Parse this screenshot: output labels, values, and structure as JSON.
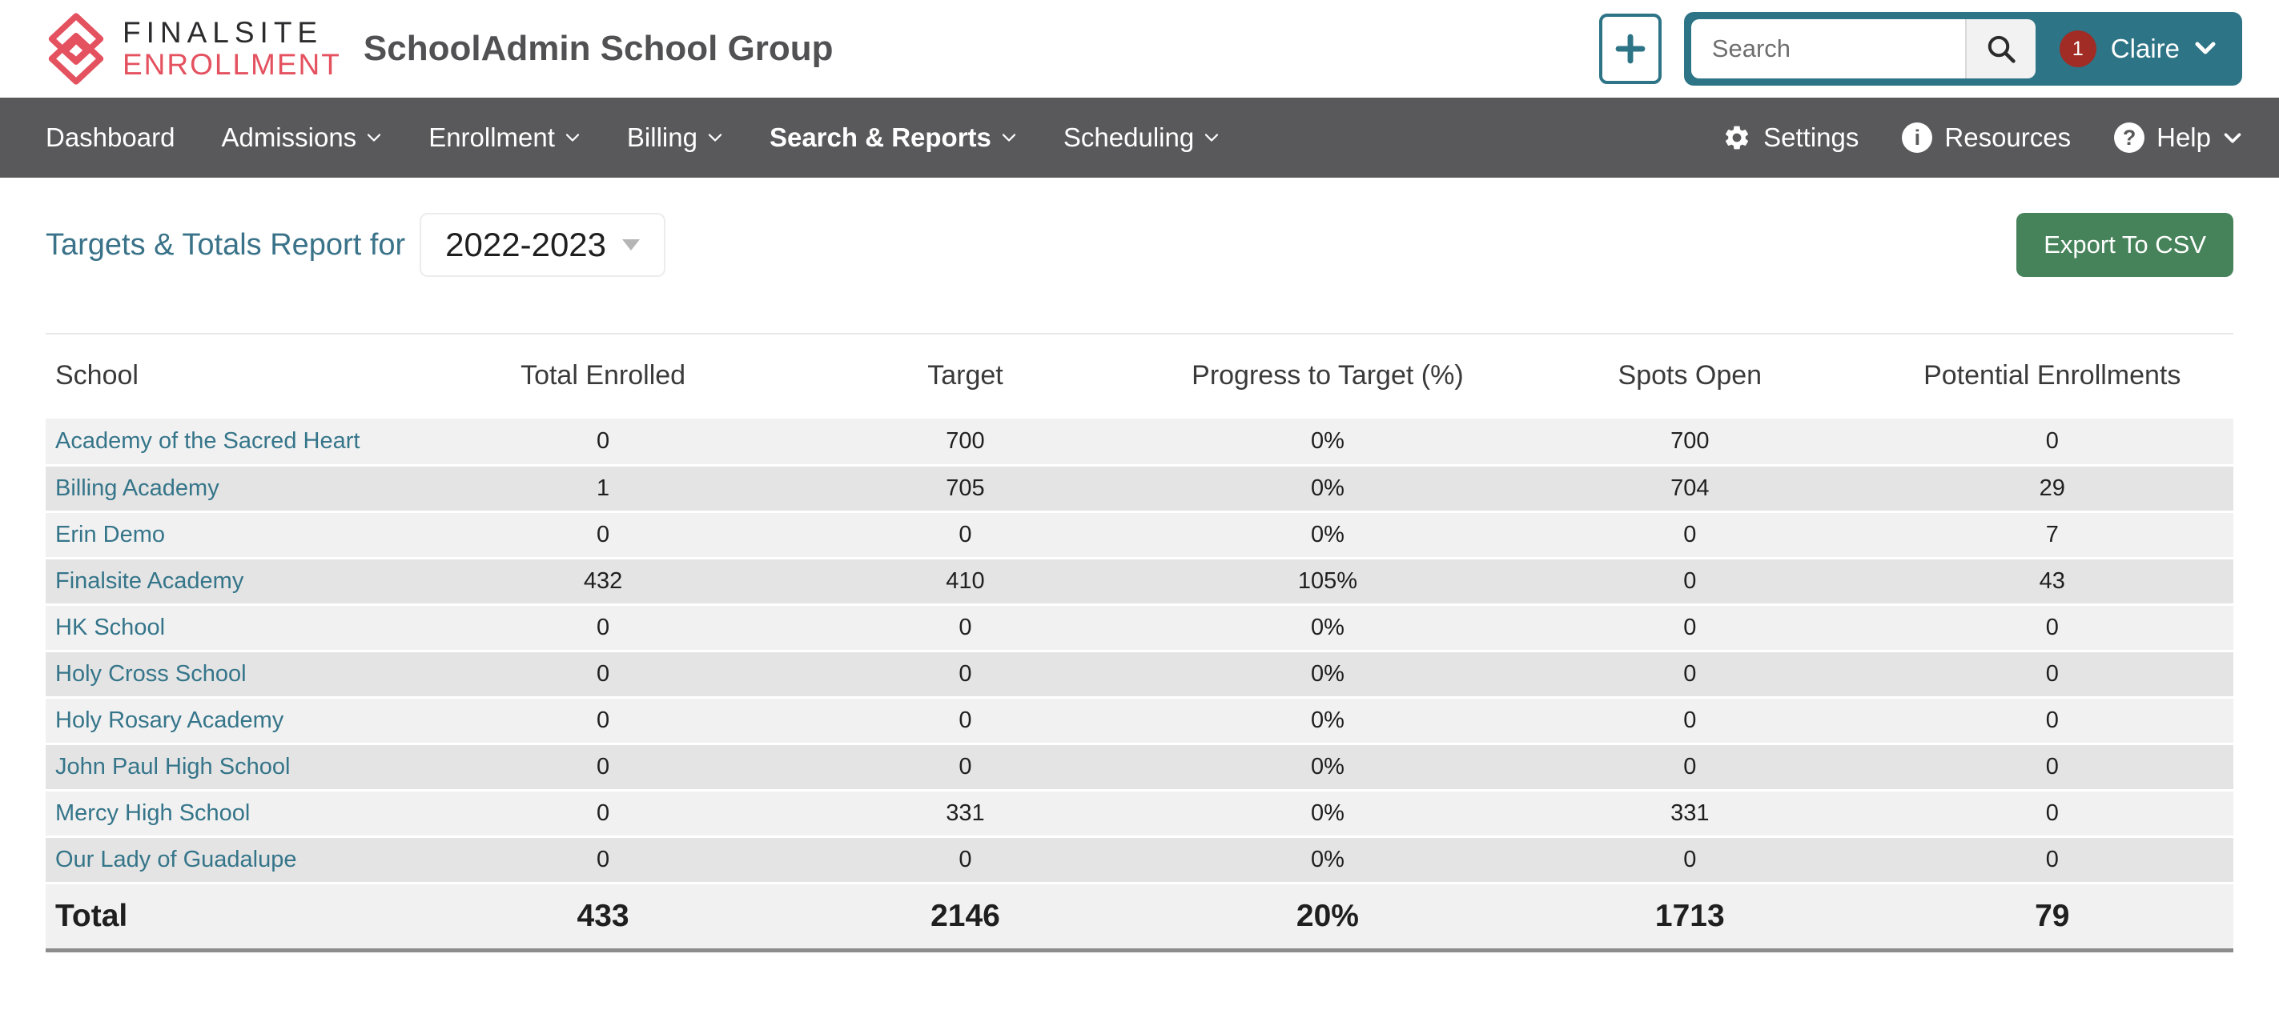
{
  "header": {
    "logo": {
      "line1": "FINALSITE",
      "line2": "ENROLLMENT"
    },
    "title": "SchoolAdmin School Group",
    "add_button_icon": "plus-icon",
    "search": {
      "placeholder": "Search",
      "button_icon": "search-icon"
    },
    "user": {
      "badge_count": "1",
      "name": "Claire",
      "chevron_icon": "chevron-down-icon"
    }
  },
  "nav": {
    "items": [
      {
        "label": "Dashboard",
        "dropdown": false,
        "active": false
      },
      {
        "label": "Admissions",
        "dropdown": true,
        "active": false
      },
      {
        "label": "Enrollment",
        "dropdown": true,
        "active": false
      },
      {
        "label": "Billing",
        "dropdown": true,
        "active": false
      },
      {
        "label": "Search & Reports",
        "dropdown": true,
        "active": true
      },
      {
        "label": "Scheduling",
        "dropdown": true,
        "active": false
      }
    ],
    "right_items": [
      {
        "label": "Settings",
        "icon": "gear-icon",
        "dropdown": false
      },
      {
        "label": "Resources",
        "icon": "info-icon",
        "dropdown": false
      },
      {
        "label": "Help",
        "icon": "question-icon",
        "dropdown": true
      }
    ]
  },
  "page": {
    "title": "Targets & Totals Report for",
    "year_selector": "2022-2023",
    "export_button": "Export To CSV"
  },
  "table": {
    "columns": [
      "School",
      "Total Enrolled",
      "Target",
      "Progress to Target (%)",
      "Spots Open",
      "Potential Enrollments"
    ],
    "rows": [
      {
        "school": "Academy of the Sacred Heart",
        "total_enrolled": "0",
        "target": "700",
        "progress_to_target": "0%",
        "spots_open": "700",
        "potential_enrollments": "0"
      },
      {
        "school": "Billing Academy",
        "total_enrolled": "1",
        "target": "705",
        "progress_to_target": "0%",
        "spots_open": "704",
        "potential_enrollments": "29"
      },
      {
        "school": "Erin Demo",
        "total_enrolled": "0",
        "target": "0",
        "progress_to_target": "0%",
        "spots_open": "0",
        "potential_enrollments": "7"
      },
      {
        "school": "Finalsite Academy",
        "total_enrolled": "432",
        "target": "410",
        "progress_to_target": "105%",
        "spots_open": "0",
        "potential_enrollments": "43"
      },
      {
        "school": "HK School",
        "total_enrolled": "0",
        "target": "0",
        "progress_to_target": "0%",
        "spots_open": "0",
        "potential_enrollments": "0"
      },
      {
        "school": "Holy Cross School",
        "total_enrolled": "0",
        "target": "0",
        "progress_to_target": "0%",
        "spots_open": "0",
        "potential_enrollments": "0"
      },
      {
        "school": "Holy Rosary Academy",
        "total_enrolled": "0",
        "target": "0",
        "progress_to_target": "0%",
        "spots_open": "0",
        "potential_enrollments": "0"
      },
      {
        "school": "John Paul High School",
        "total_enrolled": "0",
        "target": "0",
        "progress_to_target": "0%",
        "spots_open": "0",
        "potential_enrollments": "0"
      },
      {
        "school": "Mercy High School",
        "total_enrolled": "0",
        "target": "331",
        "progress_to_target": "0%",
        "spots_open": "331",
        "potential_enrollments": "0"
      },
      {
        "school": "Our Lady of Guadalupe",
        "total_enrolled": "0",
        "target": "0",
        "progress_to_target": "0%",
        "spots_open": "0",
        "potential_enrollments": "0"
      }
    ],
    "total_row": {
      "school": "Total",
      "total_enrolled": "433",
      "target": "2146",
      "progress_to_target": "20%",
      "spots_open": "1713",
      "potential_enrollments": "79"
    }
  },
  "colors": {
    "brand_teal": "#2d7486",
    "link_teal": "#35758a",
    "title_teal": "#3a7389",
    "nav_gray": "#59595b",
    "export_green": "#47835a",
    "badge_red": "#a02c25",
    "logo_red": "#e4515f",
    "row_light": "#f1f1f1",
    "row_dark": "#e4e4e4"
  }
}
